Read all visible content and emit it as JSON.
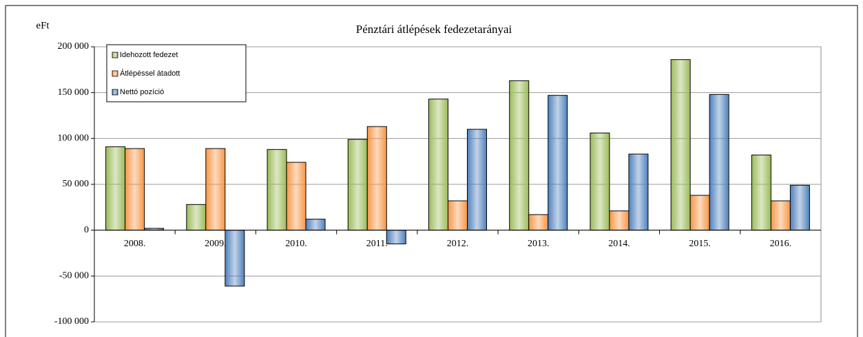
{
  "chart_data": {
    "type": "bar",
    "title": "Pénztári átlépések fedezetarányai",
    "y_label": "eFt",
    "categories": [
      "2008.",
      "2009.",
      "2010.",
      "2011.",
      "2012.",
      "2013.",
      "2014.",
      "2015.",
      "2016."
    ],
    "series": [
      {
        "name": "Idehozott fedezet",
        "color": "#9bbb59",
        "values": [
          91000,
          28000,
          88000,
          99000,
          143000,
          163000,
          106000,
          186000,
          82000
        ]
      },
      {
        "name": "Átlépéssel átadott",
        "color": "#f79646",
        "values": [
          89000,
          89000,
          74000,
          113000,
          32000,
          17000,
          21000,
          38000,
          32000
        ]
      },
      {
        "name": "Nettó pozíció",
        "color": "#4f81bd",
        "values": [
          2000,
          -61000,
          12000,
          -15000,
          110000,
          147000,
          83000,
          148000,
          49000
        ]
      }
    ],
    "ylim": [
      -100000,
      200000
    ],
    "yticks": [
      {
        "value": -100000,
        "label": "-100 000"
      },
      {
        "value": -50000,
        "label": "-50 000"
      },
      0,
      {
        "value": 50000,
        "label": "50 000"
      },
      {
        "value": 100000,
        "label": "100 000"
      },
      {
        "value": 150000,
        "label": "150 000"
      },
      {
        "value": 200000,
        "label": "200 000"
      }
    ],
    "grid": true,
    "legend": "upper left"
  }
}
